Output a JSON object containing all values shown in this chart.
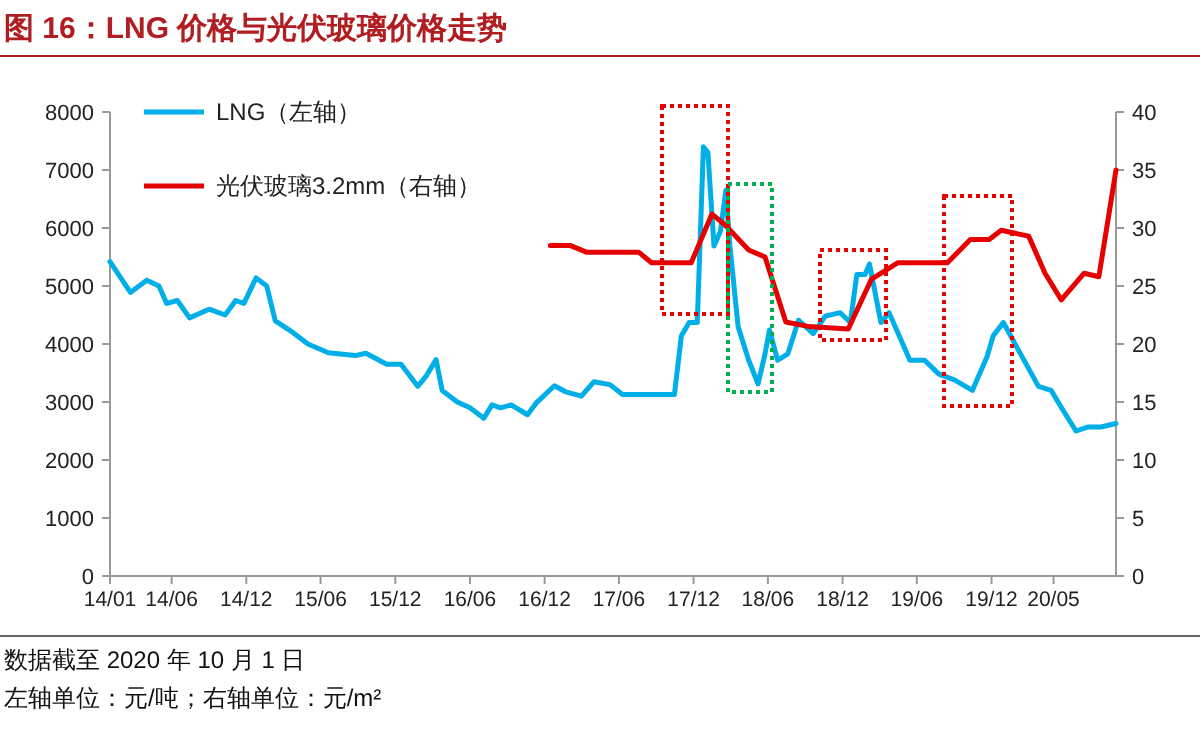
{
  "chart_data": {
    "type": "line",
    "title": "图 16：LNG 价格与光伏玻璃价格走势",
    "xlim": [
      "2014-01-01",
      "2020-10-01"
    ],
    "xticks": [
      {
        "value": "2014-01",
        "label": "14/01"
      },
      {
        "value": "2014-06",
        "label": "14/06"
      },
      {
        "value": "2014-12",
        "label": "14/12"
      },
      {
        "value": "2015-06",
        "label": "15/06"
      },
      {
        "value": "2015-12",
        "label": "15/12"
      },
      {
        "value": "2016-06",
        "label": "16/06"
      },
      {
        "value": "2016-12",
        "label": "16/12"
      },
      {
        "value": "2017-06",
        "label": "17/06"
      },
      {
        "value": "2017-12",
        "label": "17/12"
      },
      {
        "value": "2018-06",
        "label": "18/06"
      },
      {
        "value": "2018-12",
        "label": "18/12"
      },
      {
        "value": "2019-06",
        "label": "19/06"
      },
      {
        "value": "2019-12",
        "label": "19/12"
      },
      {
        "value": "2020-05",
        "label": "20/05"
      }
    ],
    "ylim": [
      0,
      8000
    ],
    "yticks": [
      0,
      1000,
      2000,
      3000,
      4000,
      5000,
      6000,
      7000,
      8000
    ],
    "y2lim": [
      0,
      40
    ],
    "y2ticks": [
      0,
      5,
      10,
      15,
      20,
      25,
      30,
      35,
      40
    ],
    "grid": false,
    "legend": "top left",
    "line_style": "solid",
    "marker": "none",
    "series": [
      {
        "name": "LNG（左轴）",
        "color": "#00aee8",
        "x": [
          "2014-01-01",
          "2014-02-20",
          "2014-04-01",
          "2014-05-01",
          "2014-05-20",
          "2014-06-15",
          "2014-07-15",
          "2014-09-01",
          "2014-10-10",
          "2014-11-05",
          "2014-11-25",
          "2014-12-25",
          "2015-01-20",
          "2015-02-10",
          "2015-03-25",
          "2015-05-01",
          "2015-06-20",
          "2015-08-25",
          "2015-09-20",
          "2015-11-10",
          "2015-12-15",
          "2016-01-25",
          "2016-02-15",
          "2016-03-10",
          "2016-03-25",
          "2016-05-01",
          "2016-06-01",
          "2016-07-05",
          "2016-07-25",
          "2016-08-15",
          "2016-09-10",
          "2016-10-20",
          "2016-11-10",
          "2016-12-25",
          "2017-01-20",
          "2017-03-01",
          "2017-04-01",
          "2017-05-10",
          "2017-06-10",
          "2017-08-10",
          "2017-10-15",
          "2017-11-01",
          "2017-11-20",
          "2017-12-10",
          "2017-12-25",
          "2018-01-05",
          "2018-01-20",
          "2018-02-05",
          "2018-02-18",
          "2018-02-28",
          "2018-03-20",
          "2018-04-15",
          "2018-05-08",
          "2018-05-25",
          "2018-06-05",
          "2018-06-25",
          "2018-07-20",
          "2018-08-15",
          "2018-09-20",
          "2018-10-20",
          "2018-11-25",
          "2018-12-20",
          "2019-01-05",
          "2019-01-25",
          "2019-02-05",
          "2019-03-05",
          "2019-03-25",
          "2019-05-15",
          "2019-06-20",
          "2019-07-25",
          "2019-09-01",
          "2019-10-15",
          "2019-11-20",
          "2019-12-05",
          "2019-12-30",
          "2020-02-10",
          "2020-03-25",
          "2020-04-25",
          "2020-05-25",
          "2020-06-25",
          "2020-07-25",
          "2020-08-25",
          "2020-10-01"
        ],
        "values": [
          5420,
          4890,
          5100,
          5000,
          4700,
          4750,
          4450,
          4600,
          4500,
          4750,
          4700,
          5140,
          5000,
          4400,
          4200,
          4000,
          3850,
          3800,
          3840,
          3650,
          3650,
          3270,
          3450,
          3730,
          3200,
          3000,
          2900,
          2720,
          2950,
          2900,
          2950,
          2780,
          2980,
          3280,
          3180,
          3100,
          3350,
          3300,
          3130,
          3130,
          3130,
          4140,
          4370,
          4370,
          7400,
          7300,
          5690,
          5950,
          6650,
          5690,
          4300,
          3720,
          3310,
          3830,
          4240,
          3720,
          3830,
          4410,
          4180,
          4480,
          4540,
          4370,
          5200,
          5200,
          5380,
          4370,
          4540,
          3720,
          3720,
          3480,
          3380,
          3200,
          3780,
          4140,
          4370,
          3830,
          3270,
          3200,
          2850,
          2500,
          2570,
          2570,
          2630
        ]
      },
      {
        "name": "光伏玻璃3.2mm（右轴）",
        "color": "#e60000",
        "axis": "y2",
        "x": [
          "2016-12-15",
          "2017-02-01",
          "2017-03-15",
          "2017-07-20",
          "2017-08-20",
          "2017-11-25",
          "2018-01-15",
          "2018-02-15",
          "2018-04-15",
          "2018-05-25",
          "2018-07-15",
          "2018-09-10",
          "2018-12-15",
          "2019-02-10",
          "2019-04-15",
          "2019-08-15",
          "2019-10-10",
          "2019-11-25",
          "2019-12-25",
          "2020-03-01",
          "2020-04-10",
          "2020-05-20",
          "2020-07-15",
          "2020-08-20",
          "2020-10-01"
        ],
        "values": [
          28.5,
          28.5,
          27.9,
          27.9,
          27.0,
          27.0,
          31.2,
          30.3,
          28.1,
          27.5,
          21.9,
          21.5,
          21.3,
          25.6,
          27.0,
          27.0,
          29.0,
          29.0,
          29.8,
          29.3,
          26.1,
          23.8,
          26.1,
          25.8,
          35
        ]
      }
    ],
    "annotations": [
      "数据截至 2020 年 10 月 1 日",
      "左轴单位：元/吨；右轴单位：元/m²"
    ]
  }
}
